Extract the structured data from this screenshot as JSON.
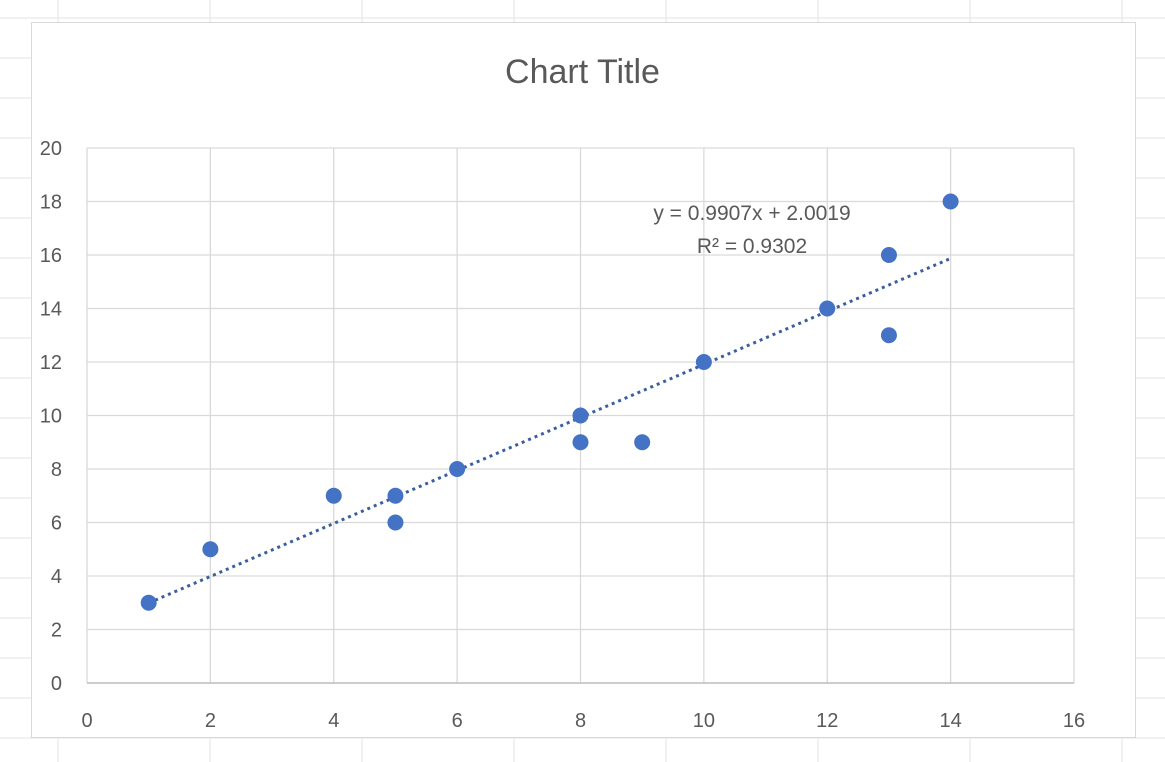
{
  "chart_data": {
    "type": "scatter",
    "title": "Chart Title",
    "xlabel": "",
    "ylabel": "",
    "xlim": [
      0,
      16
    ],
    "ylim": [
      0,
      20
    ],
    "x_ticks": [
      0,
      2,
      4,
      6,
      8,
      10,
      12,
      14,
      16
    ],
    "y_ticks": [
      0,
      2,
      4,
      6,
      8,
      10,
      12,
      14,
      16,
      18,
      20
    ],
    "grid": true,
    "legend": "none",
    "series": [
      {
        "color": "#4472c4",
        "x": [
          1,
          2,
          4,
          5,
          5,
          6,
          8,
          8,
          9,
          10,
          12,
          13,
          13,
          14
        ],
        "y": [
          3,
          5,
          7,
          7,
          6,
          8,
          10,
          9,
          9,
          12,
          14,
          16,
          13,
          18
        ]
      }
    ],
    "trendline": {
      "type": "linear",
      "style": "dotted",
      "color": "#3a5f9e",
      "slope": 0.9907,
      "intercept": 2.0019,
      "x_range": [
        1,
        14
      ],
      "equation_label": "y = 0.9907x + 2.0019",
      "r2_label": "R² = 0.9302"
    }
  }
}
